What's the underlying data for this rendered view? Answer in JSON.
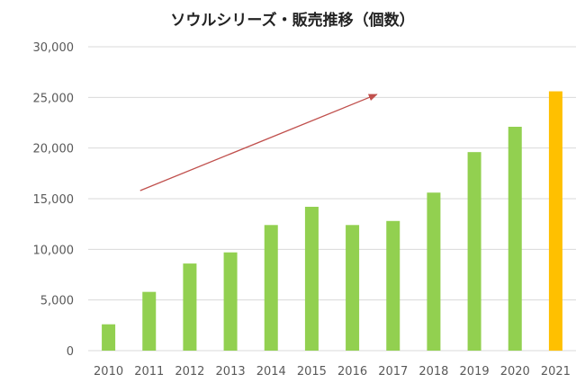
{
  "chart_data": {
    "type": "bar",
    "title": "ソウルシリーズ・販売推移（個数）",
    "xlabel": "",
    "ylabel": "",
    "categories": [
      "2010",
      "2011",
      "2012",
      "2013",
      "2014",
      "2015",
      "2016",
      "2017",
      "2018",
      "2019",
      "2020",
      "2021"
    ],
    "values": [
      2600,
      5800,
      8600,
      9700,
      12400,
      14200,
      12400,
      12800,
      15600,
      19600,
      22100,
      25600
    ],
    "ylim": [
      0,
      30000
    ],
    "yticks": [
      0,
      5000,
      10000,
      15000,
      20000,
      25000,
      30000
    ],
    "ytick_labels": [
      "0",
      "5,000",
      "10,000",
      "15,000",
      "20,000",
      "25,000",
      "30,000"
    ],
    "grid": true,
    "legend": "none",
    "colors": {
      "bar": "#92d050",
      "highlight_bar": "#ffc000",
      "highlight_category": "2021",
      "trend_arrow": "#c0504d",
      "grid": "#d9d9d9"
    },
    "annotations": [
      {
        "type": "trend-arrow",
        "from": {
          "x": "2011",
          "y": 15800
        },
        "to": {
          "x": "2017",
          "y": 25300
        }
      }
    ]
  }
}
